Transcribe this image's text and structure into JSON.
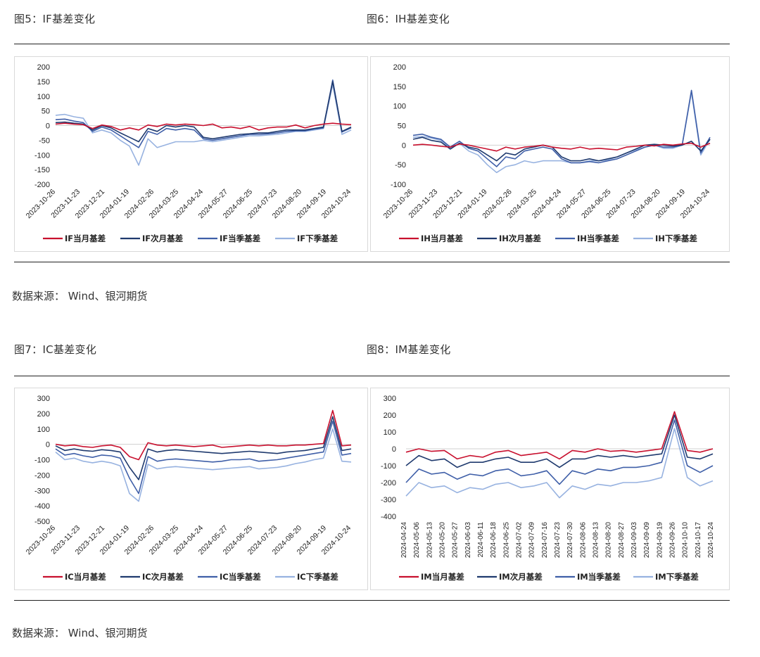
{
  "captions": {
    "fig5": "图5：IF基差变化",
    "fig6": "图6：IH基差变化",
    "fig7": "图7：IC基差变化",
    "fig8": "图8：IM基差变化"
  },
  "source_top": "数据来源：  Wind、银河期货",
  "source_bottom": "数据来源：  Wind、银河期货",
  "colors": {
    "current_month": "#c8102e",
    "next_month": "#1f3a6e",
    "current_quarter": "#3f5fa8",
    "next_quarter": "#97b2e0"
  },
  "chart_data": [
    {
      "id": "if",
      "type": "line",
      "x_labels": [
        "2023-10-26",
        "2023-11-23",
        "2023-12-21",
        "2024-01-19",
        "2024-02-26",
        "2024-03-25",
        "2024-04-24",
        "2024-05-27",
        "2024-06-25",
        "2024-07-23",
        "2024-08-20",
        "2024-09-19",
        "2024-10-24"
      ],
      "yticks": [
        200,
        150,
        100,
        50,
        0,
        -50,
        -100,
        -150,
        -200
      ],
      "ylim": [
        -200,
        200
      ],
      "series": [
        {
          "name": "IF当月基差",
          "color_key": "current_month",
          "values": [
            5,
            8,
            5,
            3,
            -10,
            2,
            -3,
            -15,
            -8,
            -15,
            2,
            -3,
            5,
            2,
            5,
            3,
            0,
            5,
            -8,
            -5,
            -10,
            -3,
            -15,
            -8,
            -5,
            -5,
            2,
            -8,
            0,
            5,
            8,
            5,
            3
          ]
        },
        {
          "name": "IF次月基差",
          "color_key": "next_month",
          "values": [
            10,
            12,
            8,
            5,
            -15,
            0,
            -8,
            -25,
            -40,
            -55,
            -10,
            -20,
            0,
            -5,
            0,
            -5,
            -40,
            -45,
            -40,
            -35,
            -30,
            -28,
            -25,
            -25,
            -20,
            -15,
            -15,
            -15,
            -10,
            -5,
            150,
            -20,
            -5
          ]
        },
        {
          "name": "IF当季基差",
          "color_key": "current_quarter",
          "values": [
            20,
            22,
            15,
            10,
            -20,
            -5,
            -15,
            -35,
            -55,
            -75,
            -20,
            -30,
            -10,
            -15,
            -10,
            -15,
            -45,
            -50,
            -45,
            -40,
            -35,
            -30,
            -30,
            -28,
            -25,
            -20,
            -18,
            -18,
            -12,
            -8,
            155,
            -22,
            -8
          ]
        },
        {
          "name": "IF下季基差",
          "color_key": "next_quarter",
          "values": [
            35,
            38,
            30,
            25,
            -25,
            -15,
            -25,
            -50,
            -70,
            -135,
            -45,
            -75,
            -65,
            -55,
            -55,
            -55,
            -50,
            -55,
            -50,
            -45,
            -40,
            -35,
            -35,
            -32,
            -30,
            -25,
            -20,
            -20,
            -15,
            -10,
            140,
            -30,
            -15
          ]
        }
      ]
    },
    {
      "id": "ih",
      "type": "line",
      "x_labels": [
        "2023-10-26",
        "2023-11-23",
        "2023-12-21",
        "2024-01-19",
        "2024-02-26",
        "2024-03-25",
        "2024-04-24",
        "2024-05-27",
        "2024-06-25",
        "2024-07-23",
        "2024-08-20",
        "2024-09-19",
        "2024-10-24"
      ],
      "yticks": [
        200,
        150,
        100,
        50,
        0,
        -50,
        -100
      ],
      "ylim": [
        -100,
        200
      ],
      "series": [
        {
          "name": "IH当月基差",
          "color_key": "current_month",
          "values": [
            0,
            2,
            0,
            -3,
            -5,
            3,
            0,
            -5,
            -10,
            -15,
            -5,
            -10,
            -5,
            -3,
            0,
            -5,
            -8,
            -10,
            -5,
            -10,
            -8,
            -10,
            -12,
            -5,
            -3,
            0,
            -2,
            2,
            0,
            3,
            5,
            -5,
            5
          ]
        },
        {
          "name": "IH次月基差",
          "color_key": "next_month",
          "values": [
            15,
            20,
            12,
            8,
            -10,
            5,
            -5,
            -10,
            -25,
            -40,
            -20,
            -25,
            -10,
            -5,
            0,
            -5,
            -30,
            -40,
            -40,
            -35,
            -40,
            -35,
            -30,
            -20,
            -10,
            0,
            2,
            0,
            -2,
            0,
            10,
            -15,
            15
          ]
        },
        {
          "name": "IH当季基差",
          "color_key": "current_quarter",
          "values": [
            25,
            28,
            20,
            15,
            -5,
            10,
            -8,
            -15,
            -35,
            -55,
            -30,
            -35,
            -15,
            -10,
            -5,
            -10,
            -35,
            -45,
            -45,
            -42,
            -45,
            -40,
            -35,
            -25,
            -15,
            -5,
            0,
            -5,
            -5,
            0,
            140,
            -20,
            20
          ]
        },
        {
          "name": "IH下季基差",
          "color_key": "next_quarter",
          "values": [
            20,
            22,
            18,
            12,
            -8,
            5,
            -15,
            -25,
            -50,
            -70,
            -55,
            -50,
            -40,
            -45,
            -40,
            -40,
            -40,
            -45,
            -45,
            -40,
            -40,
            -38,
            -30,
            -20,
            -12,
            -5,
            0,
            -8,
            -8,
            0,
            135,
            -25,
            15
          ]
        }
      ]
    },
    {
      "id": "ic",
      "type": "line",
      "x_labels": [
        "2023-10-26",
        "2023-11-23",
        "2023-12-21",
        "2024-01-19",
        "2024-02-26",
        "2024-03-25",
        "2024-04-24",
        "2024-05-27",
        "2024-06-25",
        "2024-07-23",
        "2024-08-20",
        "2024-09-19",
        "2024-10-24"
      ],
      "yticks": [
        300,
        200,
        100,
        0,
        -100,
        -200,
        -300,
        -400,
        -500
      ],
      "ylim": [
        -500,
        300
      ],
      "series": [
        {
          "name": "IC当月基差",
          "color_key": "current_month",
          "values": [
            0,
            -10,
            -5,
            -15,
            -20,
            -10,
            -5,
            -20,
            -80,
            -100,
            10,
            -5,
            -10,
            -5,
            -10,
            -15,
            -10,
            -5,
            -20,
            -15,
            -10,
            -5,
            -10,
            -5,
            -10,
            -10,
            -5,
            -5,
            0,
            5,
            220,
            -10,
            -5
          ]
        },
        {
          "name": "IC次月基差",
          "color_key": "next_month",
          "values": [
            -10,
            -40,
            -30,
            -40,
            -45,
            -35,
            -40,
            -50,
            -150,
            -230,
            -30,
            -50,
            -40,
            -35,
            -40,
            -45,
            -50,
            -55,
            -60,
            -55,
            -50,
            -45,
            -50,
            -55,
            -60,
            -50,
            -45,
            -40,
            -30,
            -20,
            180,
            -40,
            -30
          ]
        },
        {
          "name": "IC当季基差",
          "color_key": "current_quarter",
          "values": [
            -30,
            -70,
            -60,
            -75,
            -85,
            -70,
            -75,
            -90,
            -220,
            -320,
            -80,
            -110,
            -100,
            -95,
            -100,
            -105,
            -110,
            -115,
            -110,
            -100,
            -100,
            -95,
            -110,
            -105,
            -100,
            -90,
            -80,
            -70,
            -60,
            -50,
            150,
            -70,
            -60
          ]
        },
        {
          "name": "IC下季基差",
          "color_key": "next_quarter",
          "values": [
            -50,
            -100,
            -90,
            -110,
            -120,
            -110,
            -120,
            -140,
            -320,
            -370,
            -130,
            -160,
            -150,
            -145,
            -150,
            -155,
            -160,
            -165,
            -160,
            -155,
            -150,
            -145,
            -160,
            -155,
            -150,
            -140,
            -125,
            -115,
            -100,
            -90,
            100,
            -110,
            -115
          ]
        }
      ]
    },
    {
      "id": "im",
      "type": "line",
      "x_labels": [
        "2024-04-24",
        "2024-05-06",
        "2024-05-13",
        "2024-05-20",
        "2024-05-27",
        "2024-06-03",
        "2024-06-11",
        "2024-06-18",
        "2024-06-25",
        "2024-07-02",
        "2024-07-09",
        "2024-07-16",
        "2024-07-23",
        "2024-07-30",
        "2024-08-06",
        "2024-08-13",
        "2024-08-20",
        "2024-08-27",
        "2024-09-03",
        "2024-09-09",
        "2024-09-19",
        "2024-09-26",
        "2024-10-10",
        "2024-10-17",
        "2024-10-24"
      ],
      "yticks": [
        300,
        200,
        100,
        0,
        -100,
        -200,
        -300,
        -400
      ],
      "ylim": [
        -400,
        300
      ],
      "series": [
        {
          "name": "IM当月基差",
          "color_key": "current_month",
          "values": [
            -20,
            0,
            -15,
            -10,
            -60,
            -40,
            -50,
            -20,
            -10,
            -40,
            -30,
            -20,
            -60,
            -10,
            -20,
            0,
            -15,
            -10,
            -20,
            -10,
            0,
            220,
            -10,
            -20,
            0
          ]
        },
        {
          "name": "IM次月基差",
          "color_key": "next_month",
          "values": [
            -100,
            -40,
            -70,
            -60,
            -110,
            -80,
            -80,
            -60,
            -50,
            -80,
            -80,
            -60,
            -110,
            -60,
            -60,
            -40,
            -50,
            -40,
            -50,
            -40,
            -30,
            200,
            -50,
            -60,
            -30
          ]
        },
        {
          "name": "IM当季基差",
          "color_key": "current_quarter",
          "values": [
            -200,
            -120,
            -150,
            -140,
            -180,
            -150,
            -160,
            -130,
            -120,
            -160,
            -150,
            -130,
            -210,
            -130,
            -150,
            -120,
            -130,
            -110,
            -110,
            -100,
            -80,
            170,
            -100,
            -140,
            -100
          ]
        },
        {
          "name": "IM下季基差",
          "color_key": "next_quarter",
          "values": [
            -280,
            -200,
            -230,
            -220,
            -260,
            -230,
            -240,
            -210,
            -200,
            -230,
            -220,
            -200,
            -290,
            -220,
            -240,
            -210,
            -220,
            -200,
            -200,
            -190,
            -170,
            120,
            -170,
            -220,
            -190
          ]
        }
      ]
    }
  ]
}
